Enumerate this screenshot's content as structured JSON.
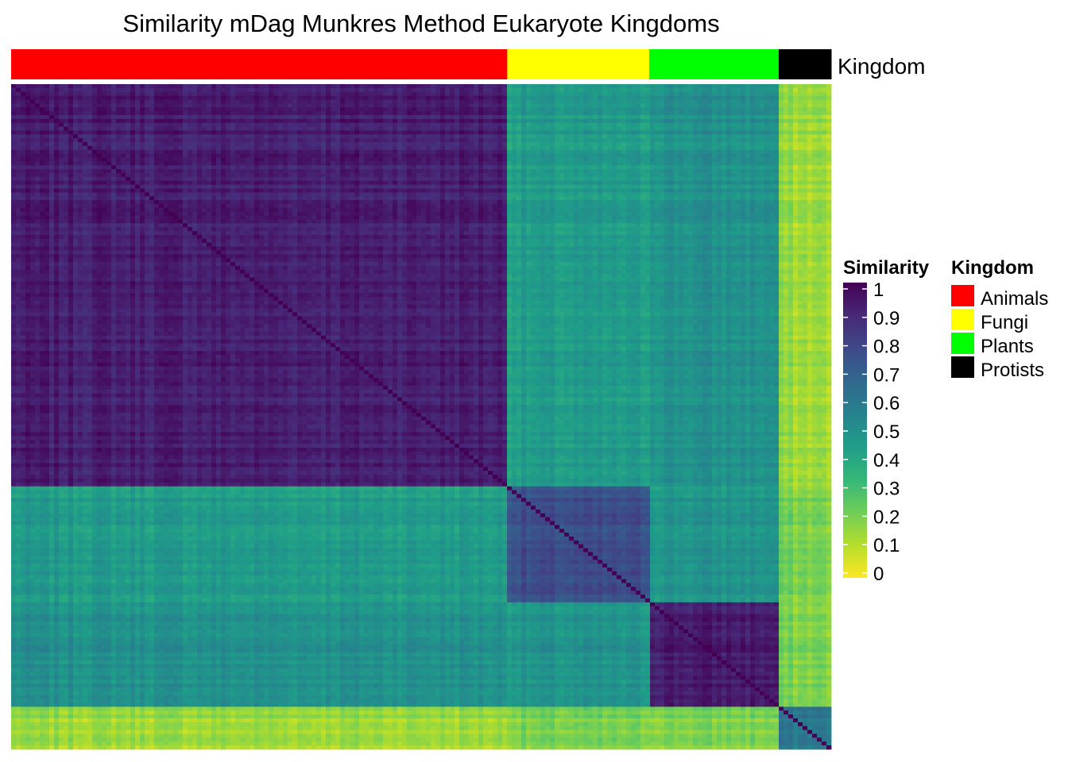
{
  "chart_data": {
    "type": "heatmap",
    "title": "Similarity mDag Munkres Method Eukaryote Kingdoms",
    "annotation": {
      "label": "Kingdom",
      "groups": [
        {
          "name": "Animals",
          "color": "#FF0000"
        },
        {
          "name": "Fungi",
          "color": "#FFFF00"
        },
        {
          "name": "Plants",
          "color": "#00FF00"
        },
        {
          "name": "Protists",
          "color": "#000000"
        }
      ]
    },
    "color_scale": {
      "title": "Similarity",
      "min": 0,
      "max": 1,
      "ticks": [
        "1",
        "0.9",
        "0.8",
        "0.7",
        "0.6",
        "0.5",
        "0.4",
        "0.3",
        "0.2",
        "0.1",
        "0"
      ],
      "palette": [
        "#FDE725",
        "#B5DE2B",
        "#6ECE58",
        "#35B779",
        "#1F9E89",
        "#26828E",
        "#31688E",
        "#3E4989",
        "#482878",
        "#440154"
      ]
    },
    "legend": {
      "title": "Kingdom",
      "items": [
        "Animals",
        "Fungi",
        "Plants",
        "Protists"
      ]
    },
    "blocks": {
      "order": [
        "Animals",
        "Fungi",
        "Plants",
        "Protists"
      ],
      "relative_size": [
        0.605,
        0.173,
        0.158,
        0.064
      ],
      "within_group_similarity": [
        0.92,
        0.75,
        0.93,
        0.6
      ],
      "between_group_similarity": {
        "Animals-Fungi": 0.45,
        "Animals-Plants": 0.5,
        "Animals-Protists": 0.15,
        "Fungi-Plants": 0.48,
        "Fungi-Protists": 0.2,
        "Plants-Protists": 0.2
      }
    }
  }
}
